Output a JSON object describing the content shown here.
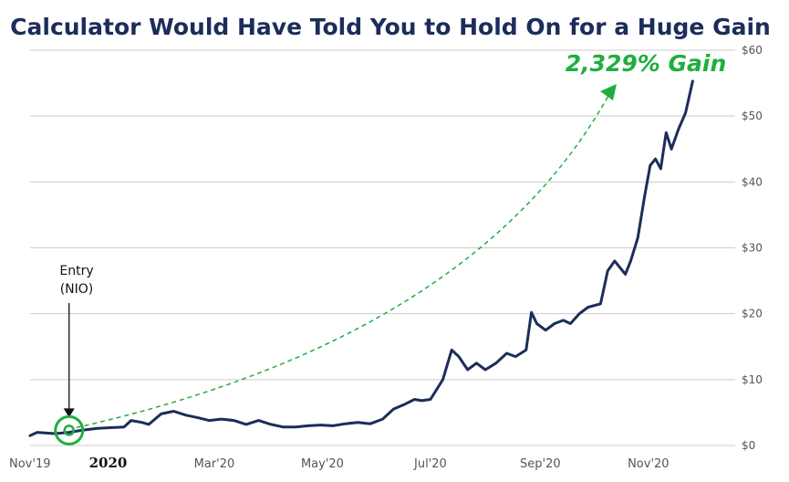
{
  "chart_data": {
    "type": "line",
    "title": "Calculator Would Have Told You to Hold On for a Huge Gain",
    "xlabel": "",
    "ylabel": "",
    "ylim": [
      0,
      60
    ],
    "x_range": [
      "2019-11-18",
      "2020-12-20"
    ],
    "y_ticks": [
      "$0",
      "$10",
      "$20",
      "$30",
      "$40",
      "$50",
      "$60"
    ],
    "x_ticks": [
      {
        "label": "Nov'19",
        "date": "2019-11-20",
        "bold": false
      },
      {
        "label": "2020",
        "date": "2020-01-01",
        "bold": true
      },
      {
        "label": "Mar'20",
        "date": "2020-03-01",
        "bold": false
      },
      {
        "label": "May'20",
        "date": "2020-05-01",
        "bold": false
      },
      {
        "label": "Jul'20",
        "date": "2020-07-01",
        "bold": false
      },
      {
        "label": "Sep'20",
        "date": "2020-09-01",
        "bold": false
      },
      {
        "label": "Nov'20",
        "date": "2020-11-01",
        "bold": false
      }
    ],
    "grid": true,
    "series": [
      {
        "color": "#1c2d5a",
        "points": [
          [
            "2019-11-18",
            1.5
          ],
          [
            "2019-11-22",
            2.0
          ],
          [
            "2019-12-02",
            1.8
          ],
          [
            "2019-12-10",
            2.0
          ],
          [
            "2019-12-17",
            2.3
          ],
          [
            "2019-12-26",
            2.6
          ],
          [
            "2020-01-02",
            2.7
          ],
          [
            "2020-01-10",
            2.8
          ],
          [
            "2020-01-14",
            3.8
          ],
          [
            "2020-01-20",
            3.5
          ],
          [
            "2020-01-24",
            3.2
          ],
          [
            "2020-01-31",
            4.8
          ],
          [
            "2020-02-07",
            5.2
          ],
          [
            "2020-02-14",
            4.6
          ],
          [
            "2020-02-21",
            4.2
          ],
          [
            "2020-02-27",
            3.8
          ],
          [
            "2020-03-05",
            4.0
          ],
          [
            "2020-03-12",
            3.8
          ],
          [
            "2020-03-19",
            3.2
          ],
          [
            "2020-03-26",
            3.8
          ],
          [
            "2020-04-02",
            3.2
          ],
          [
            "2020-04-09",
            2.8
          ],
          [
            "2020-04-16",
            2.8
          ],
          [
            "2020-04-23",
            3.0
          ],
          [
            "2020-04-30",
            3.1
          ],
          [
            "2020-05-07",
            3.0
          ],
          [
            "2020-05-14",
            3.3
          ],
          [
            "2020-05-21",
            3.5
          ],
          [
            "2020-05-28",
            3.3
          ],
          [
            "2020-06-04",
            4.0
          ],
          [
            "2020-06-10",
            5.5
          ],
          [
            "2020-06-16",
            6.2
          ],
          [
            "2020-06-22",
            7.0
          ],
          [
            "2020-06-26",
            6.8
          ],
          [
            "2020-07-01",
            7.0
          ],
          [
            "2020-07-08",
            10.0
          ],
          [
            "2020-07-13",
            14.5
          ],
          [
            "2020-07-17",
            13.5
          ],
          [
            "2020-07-22",
            11.5
          ],
          [
            "2020-07-27",
            12.5
          ],
          [
            "2020-08-01",
            11.5
          ],
          [
            "2020-08-07",
            12.5
          ],
          [
            "2020-08-13",
            14.0
          ],
          [
            "2020-08-18",
            13.5
          ],
          [
            "2020-08-24",
            14.5
          ],
          [
            "2020-08-27",
            20.2
          ],
          [
            "2020-08-30",
            18.5
          ],
          [
            "2020-09-04",
            17.5
          ],
          [
            "2020-09-09",
            18.5
          ],
          [
            "2020-09-14",
            19.0
          ],
          [
            "2020-09-18",
            18.5
          ],
          [
            "2020-09-23",
            20.0
          ],
          [
            "2020-09-28",
            21.0
          ],
          [
            "2020-10-05",
            21.5
          ],
          [
            "2020-10-09",
            26.5
          ],
          [
            "2020-10-13",
            28.0
          ],
          [
            "2020-10-19",
            26.0
          ],
          [
            "2020-10-22",
            28.0
          ],
          [
            "2020-10-26",
            31.5
          ],
          [
            "2020-10-30",
            38.0
          ],
          [
            "2020-11-02",
            42.5
          ],
          [
            "2020-11-05",
            43.5
          ],
          [
            "2020-11-08",
            42.0
          ],
          [
            "2020-11-11",
            47.5
          ],
          [
            "2020-11-14",
            45.0
          ],
          [
            "2020-11-18",
            48.0
          ],
          [
            "2020-11-22",
            50.5
          ],
          [
            "2020-11-26",
            55.3
          ]
        ]
      }
    ],
    "annotations": [
      {
        "text": "2,329% Gain",
        "color": "#1fae3e"
      },
      {
        "text_lines": [
          "Entry",
          "(NIO)"
        ],
        "date": "2019-12-10",
        "value": 2.3
      }
    ],
    "colors": {
      "line": "#1c2d5a",
      "gain": "#1fae3e",
      "title": "#1c2d5a",
      "grid": "#cccccc"
    }
  }
}
